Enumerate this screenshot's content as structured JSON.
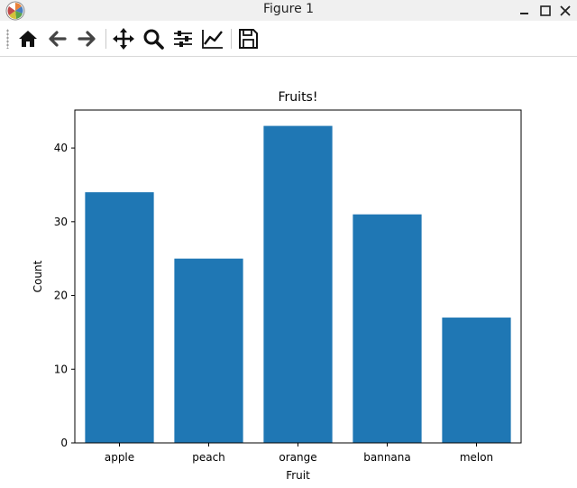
{
  "window": {
    "title": "Figure 1"
  },
  "icons": {
    "app": "matplotlib-logo-icon",
    "minimize": "minimize-icon",
    "maximize": "maximize-icon",
    "close": "close-icon"
  },
  "toolbar": {
    "tools": [
      "home-icon",
      "back-arrow-icon",
      "forward-arrow-icon",
      "pan-icon",
      "zoom-icon",
      "subplots-icon",
      "edit-axis-icon",
      "save-icon"
    ]
  },
  "chart_data": {
    "type": "bar",
    "title": "Fruits!",
    "xlabel": "Fruit",
    "ylabel": "Count",
    "categories": [
      "apple",
      "peach",
      "orange",
      "bannana",
      "melon"
    ],
    "values": [
      34,
      25,
      43,
      31,
      17
    ],
    "ylim": [
      0,
      45.15
    ],
    "yticks": [
      0,
      10,
      20,
      30,
      40
    ],
    "bar_color": "#1f77b4",
    "grid": false,
    "legend": "none"
  }
}
